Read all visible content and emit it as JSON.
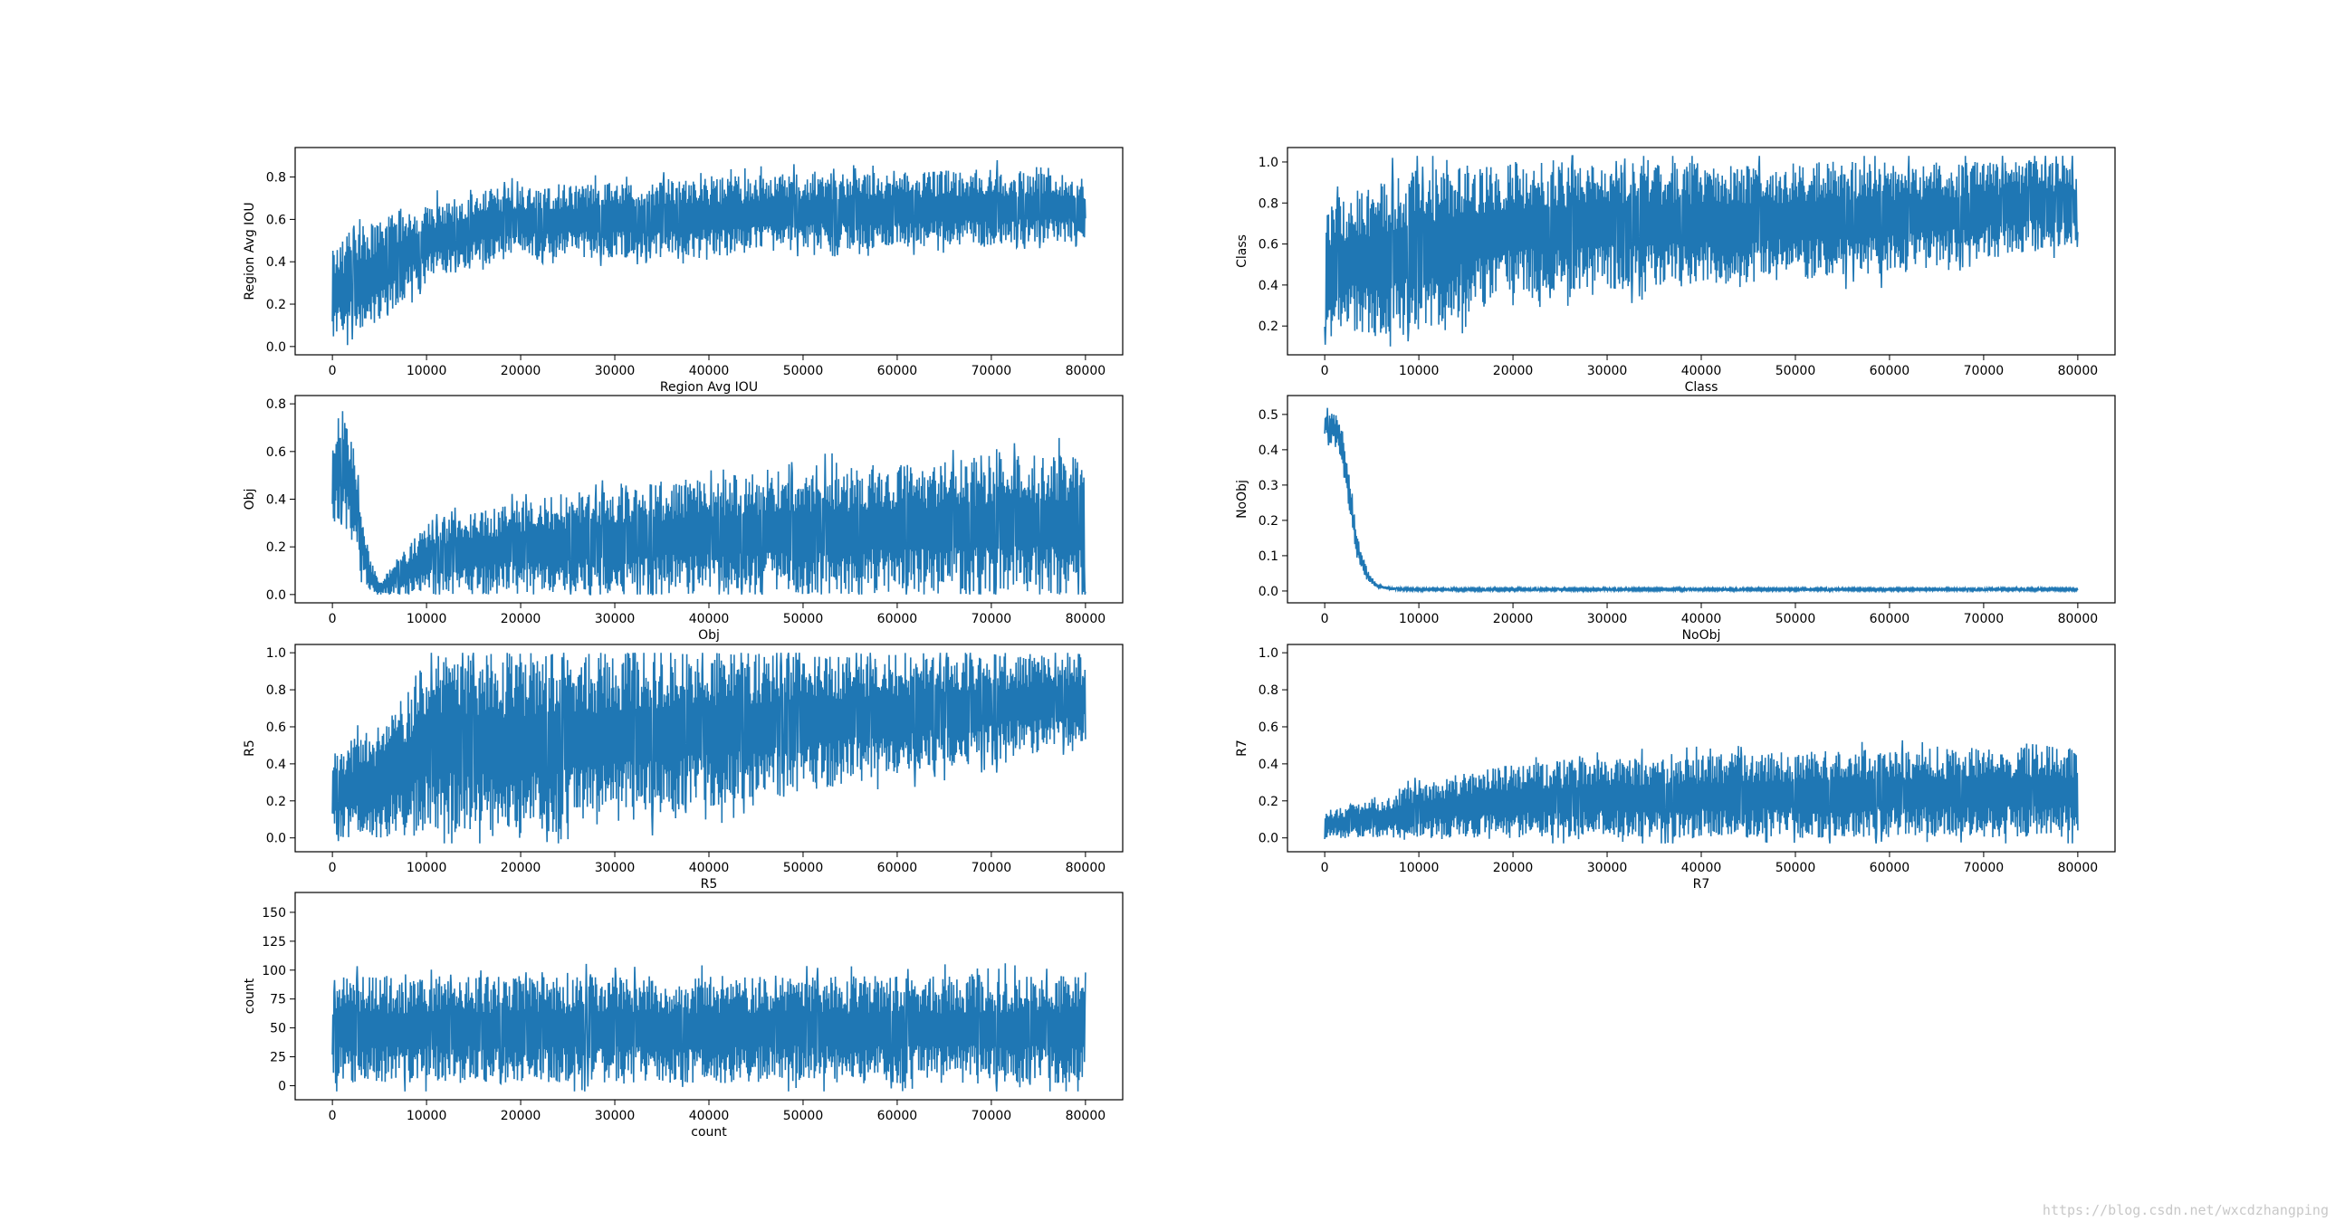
{
  "watermark": "https://blog.csdn.net/wxcdzhangping",
  "colors": {
    "series": "#1f77b4",
    "axes": "#000000",
    "background": "#ffffff"
  },
  "chart_data": [
    {
      "type": "line",
      "id": "iou",
      "xlabel": "Region Avg IOU",
      "ylabel": "Region Avg IOU",
      "xlim": [
        0,
        80000
      ],
      "ylim": [
        0,
        0.9
      ],
      "xticks": [
        0,
        10000,
        20000,
        30000,
        40000,
        50000,
        60000,
        70000,
        80000
      ],
      "yticks": [
        0.0,
        0.2,
        0.4,
        0.6,
        0.8
      ],
      "envelope": {
        "x": [
          0,
          2000,
          5000,
          10000,
          15000,
          20000,
          30000,
          40000,
          50000,
          60000,
          70000,
          80000
        ],
        "lower": [
          0.02,
          0.05,
          0.12,
          0.3,
          0.38,
          0.42,
          0.42,
          0.42,
          0.45,
          0.46,
          0.47,
          0.5
        ],
        "upper": [
          0.45,
          0.55,
          0.6,
          0.68,
          0.74,
          0.76,
          0.78,
          0.8,
          0.82,
          0.82,
          0.84,
          0.8
        ]
      }
    },
    {
      "type": "line",
      "id": "class",
      "xlabel": "Class",
      "ylabel": "Class",
      "xlim": [
        0,
        80000
      ],
      "ylim": [
        0.1,
        1.03
      ],
      "xticks": [
        0,
        10000,
        20000,
        30000,
        40000,
        50000,
        60000,
        70000,
        80000
      ],
      "yticks": [
        0.2,
        0.4,
        0.6,
        0.8,
        1.0
      ],
      "envelope": {
        "x": [
          0,
          5000,
          10000,
          15000,
          20000,
          40000,
          60000,
          80000
        ],
        "lower": [
          0.15,
          0.15,
          0.15,
          0.25,
          0.35,
          0.4,
          0.45,
          0.6
        ],
        "upper": [
          0.82,
          0.9,
          0.97,
          1.0,
          1.0,
          1.0,
          1.0,
          1.0
        ]
      }
    },
    {
      "type": "line",
      "id": "obj",
      "xlabel": "Obj",
      "ylabel": "Obj",
      "xlim": [
        0,
        80000
      ],
      "ylim": [
        0,
        0.8
      ],
      "xticks": [
        0,
        10000,
        20000,
        30000,
        40000,
        50000,
        60000,
        70000,
        80000
      ],
      "yticks": [
        0.0,
        0.2,
        0.4,
        0.6,
        0.8
      ],
      "envelope": {
        "x": [
          0,
          1000,
          2000,
          3000,
          4000,
          5000,
          6000,
          8000,
          10000,
          20000,
          40000,
          60000,
          80000
        ],
        "lower": [
          0.3,
          0.3,
          0.2,
          0.08,
          0.02,
          0.0,
          0.0,
          0.0,
          0.0,
          0.0,
          0.0,
          0.0,
          0.0
        ],
        "upper": [
          0.68,
          0.78,
          0.7,
          0.4,
          0.15,
          0.05,
          0.1,
          0.2,
          0.3,
          0.4,
          0.5,
          0.55,
          0.6
        ]
      }
    },
    {
      "type": "line",
      "id": "noobj",
      "xlabel": "NoObj",
      "ylabel": "NoObj",
      "xlim": [
        0,
        80000
      ],
      "ylim": [
        -0.01,
        0.53
      ],
      "xticks": [
        0,
        10000,
        20000,
        30000,
        40000,
        50000,
        60000,
        70000,
        80000
      ],
      "yticks": [
        0.0,
        0.1,
        0.2,
        0.3,
        0.4,
        0.5
      ],
      "envelope": {
        "x": [
          0,
          1500,
          2500,
          3500,
          4500,
          5500,
          7000,
          10000,
          80000
        ],
        "lower": [
          0.43,
          0.4,
          0.25,
          0.08,
          0.03,
          0.01,
          0.002,
          0.001,
          0.001
        ],
        "upper": [
          0.52,
          0.5,
          0.35,
          0.15,
          0.06,
          0.02,
          0.01,
          0.008,
          0.008
        ]
      }
    },
    {
      "type": "line",
      "id": "r5",
      "xlabel": "R5",
      "ylabel": "R5",
      "xlim": [
        0,
        80000
      ],
      "ylim": [
        -0.03,
        1.0
      ],
      "xticks": [
        0,
        10000,
        20000,
        30000,
        40000,
        50000,
        60000,
        70000,
        80000
      ],
      "yticks": [
        0.0,
        0.2,
        0.4,
        0.6,
        0.8,
        1.0
      ],
      "envelope": {
        "x": [
          0,
          5000,
          8000,
          10000,
          15000,
          20000,
          80000
        ],
        "lower": [
          0.0,
          0.0,
          0.0,
          0.0,
          0.0,
          0.0,
          0.5
        ],
        "upper": [
          0.5,
          0.6,
          0.8,
          1.0,
          1.0,
          1.0,
          1.0
        ]
      }
    },
    {
      "type": "line",
      "id": "r7",
      "xlabel": "R7",
      "ylabel": "R7",
      "xlim": [
        0,
        80000
      ],
      "ylim": [
        -0.03,
        1.0
      ],
      "xticks": [
        0,
        10000,
        20000,
        30000,
        40000,
        50000,
        60000,
        70000,
        80000
      ],
      "yticks": [
        0.0,
        0.2,
        0.4,
        0.6,
        0.8,
        1.0
      ],
      "envelope": {
        "x": [
          0,
          5000,
          10000,
          20000,
          40000,
          60000,
          80000
        ],
        "lower": [
          0.0,
          0.0,
          0.0,
          0.0,
          0.0,
          0.0,
          0.0
        ],
        "upper": [
          0.15,
          0.2,
          0.3,
          0.4,
          0.45,
          0.48,
          0.5
        ]
      }
    },
    {
      "type": "line",
      "id": "count",
      "xlabel": "count",
      "ylabel": "count",
      "xlim": [
        0,
        80000
      ],
      "ylim": [
        -5,
        160
      ],
      "xticks": [
        0,
        10000,
        20000,
        30000,
        40000,
        50000,
        60000,
        70000,
        80000
      ],
      "yticks": [
        0,
        25,
        50,
        75,
        100,
        125,
        150
      ],
      "envelope": {
        "x": [
          0,
          1000,
          80000
        ],
        "lower": [
          2,
          2,
          2
        ],
        "upper": [
          90,
          95,
          95
        ]
      }
    }
  ]
}
